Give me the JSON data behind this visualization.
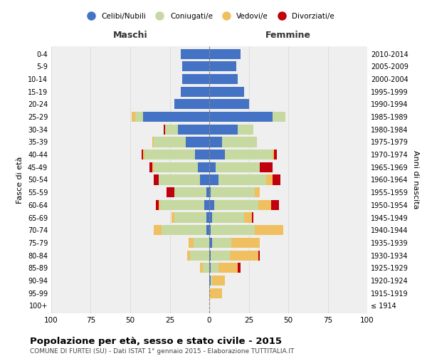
{
  "age_groups": [
    "100+",
    "95-99",
    "90-94",
    "85-89",
    "80-84",
    "75-79",
    "70-74",
    "65-69",
    "60-64",
    "55-59",
    "50-54",
    "45-49",
    "40-44",
    "35-39",
    "30-34",
    "25-29",
    "20-24",
    "15-19",
    "10-14",
    "5-9",
    "0-4"
  ],
  "birth_years": [
    "≤ 1914",
    "1915-1919",
    "1920-1924",
    "1925-1929",
    "1930-1934",
    "1935-1939",
    "1940-1944",
    "1945-1949",
    "1950-1954",
    "1955-1959",
    "1960-1964",
    "1965-1969",
    "1970-1974",
    "1975-1979",
    "1980-1984",
    "1985-1989",
    "1990-1994",
    "1995-1999",
    "2000-2004",
    "2005-2009",
    "2010-2014"
  ],
  "male": {
    "celibi": [
      0,
      0,
      0,
      0,
      0,
      0,
      2,
      2,
      3,
      2,
      6,
      7,
      9,
      15,
      20,
      42,
      22,
      18,
      17,
      17,
      18
    ],
    "coniugati": [
      0,
      0,
      0,
      4,
      12,
      10,
      28,
      20,
      28,
      20,
      26,
      28,
      32,
      20,
      8,
      5,
      0,
      0,
      0,
      0,
      0
    ],
    "vedovi": [
      0,
      0,
      0,
      2,
      2,
      3,
      5,
      2,
      1,
      0,
      0,
      1,
      1,
      1,
      0,
      2,
      0,
      0,
      0,
      0,
      0
    ],
    "divorziati": [
      0,
      0,
      0,
      0,
      0,
      0,
      0,
      0,
      2,
      5,
      3,
      2,
      1,
      0,
      1,
      0,
      0,
      0,
      0,
      0,
      0
    ]
  },
  "female": {
    "nubili": [
      0,
      0,
      1,
      1,
      1,
      2,
      1,
      2,
      3,
      1,
      6,
      4,
      10,
      8,
      18,
      40,
      25,
      22,
      18,
      17,
      20
    ],
    "coniugate": [
      0,
      0,
      1,
      5,
      12,
      12,
      28,
      20,
      28,
      28,
      30,
      28,
      30,
      22,
      10,
      8,
      0,
      0,
      0,
      0,
      0
    ],
    "vedove": [
      0,
      8,
      8,
      12,
      18,
      18,
      18,
      5,
      8,
      3,
      4,
      0,
      1,
      0,
      0,
      0,
      0,
      0,
      0,
      0,
      0
    ],
    "divorziate": [
      0,
      0,
      0,
      2,
      1,
      0,
      0,
      1,
      5,
      0,
      5,
      8,
      2,
      0,
      0,
      0,
      0,
      0,
      0,
      0,
      0
    ]
  },
  "colors": {
    "celibi": "#4472C4",
    "coniugati": "#c5d9a0",
    "vedovi": "#f0c060",
    "divorziati": "#C0000C"
  },
  "legend_labels": [
    "Celibi/Nubili",
    "Coniugati/e",
    "Vedovi/e",
    "Divorziati/e"
  ],
  "title": "Popolazione per età, sesso e stato civile - 2015",
  "subtitle": "COMUNE DI FURTEI (SU) - Dati ISTAT 1° gennaio 2015 - Elaborazione TUTTITALIA.IT",
  "header_left": "Maschi",
  "header_right": "Femmine",
  "ylabel_left": "Fasce di età",
  "ylabel_right": "Anni di nascita",
  "xlim": 100,
  "bg_color": "#ffffff",
  "plot_bg": "#efefef"
}
